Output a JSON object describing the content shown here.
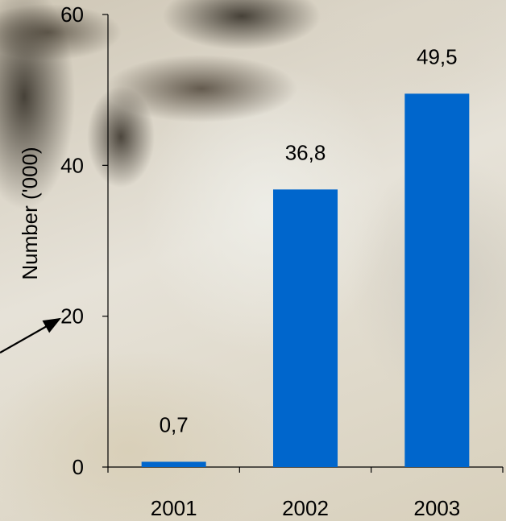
{
  "chart_data": {
    "type": "bar",
    "categories": [
      "2001",
      "2002",
      "2003"
    ],
    "values": [
      0.7,
      36.8,
      49.5
    ],
    "value_labels": [
      "0,7",
      "36,8",
      "49,5"
    ],
    "title": "",
    "xlabel": "",
    "ylabel": "Number ('000)",
    "ylim": [
      0,
      60
    ],
    "yticks": [
      0,
      20,
      40,
      60
    ],
    "ytick_labels": [
      "0",
      "20",
      "40",
      "60"
    ],
    "grid": false,
    "legend": "none",
    "bar_color": "#0066cc"
  }
}
